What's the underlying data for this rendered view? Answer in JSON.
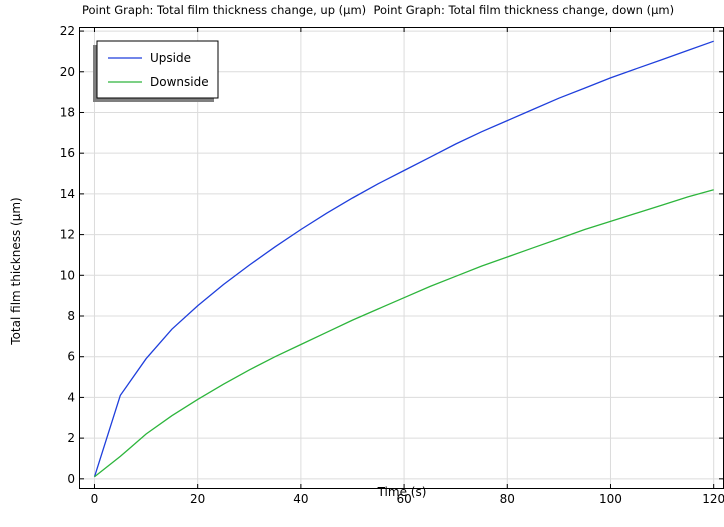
{
  "chart_data": {
    "type": "line",
    "title": "Point Graph: Total film thickness change, up (µm)  Point Graph: Total film thickness change, down (µm)",
    "xlabel": "Time (s)",
    "ylabel": "Total film thickness (µm)",
    "xlim": [
      -3,
      122
    ],
    "ylim": [
      -0.5,
      22.2
    ],
    "xticks": [
      0,
      20,
      40,
      60,
      80,
      100,
      120
    ],
    "yticks": [
      0,
      2,
      4,
      6,
      8,
      10,
      12,
      14,
      16,
      18,
      20,
      22
    ],
    "grid": true,
    "legend_position": "top-left",
    "series": [
      {
        "name": "Upside",
        "color": "#1f3fdc",
        "x": [
          0,
          5,
          10,
          15,
          20,
          25,
          30,
          35,
          40,
          45,
          50,
          55,
          60,
          65,
          70,
          75,
          80,
          85,
          90,
          95,
          100,
          105,
          110,
          115,
          120
        ],
        "y": [
          0.1,
          4.1,
          5.9,
          7.35,
          8.5,
          9.55,
          10.5,
          11.4,
          12.25,
          13.05,
          13.8,
          14.5,
          15.15,
          15.8,
          16.45,
          17.05,
          17.6,
          18.15,
          18.7,
          19.2,
          19.7,
          20.15,
          20.6,
          21.05,
          21.5
        ]
      },
      {
        "name": "Downside",
        "color": "#2db53c",
        "x": [
          0,
          5,
          10,
          15,
          20,
          25,
          30,
          35,
          40,
          45,
          50,
          55,
          60,
          65,
          70,
          75,
          80,
          85,
          90,
          95,
          100,
          105,
          110,
          115,
          120
        ],
        "y": [
          0.1,
          1.1,
          2.2,
          3.1,
          3.9,
          4.65,
          5.35,
          6.0,
          6.6,
          7.2,
          7.8,
          8.35,
          8.9,
          9.45,
          9.95,
          10.45,
          10.9,
          11.35,
          11.8,
          12.25,
          12.65,
          13.05,
          13.45,
          13.85,
          14.2
        ]
      }
    ]
  }
}
